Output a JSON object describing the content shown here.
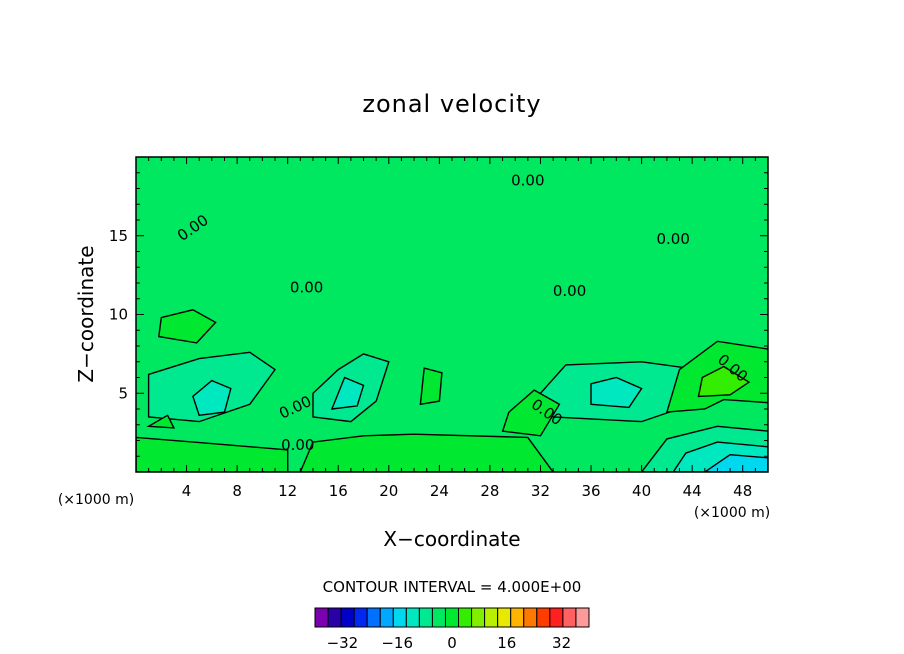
{
  "chart_data": {
    "type": "heatmap",
    "title": "zonal velocity",
    "xlabel": "X−coordinate",
    "ylabel": "Z−coordinate",
    "x_units": "(×1000 m)",
    "y_units": "(×1000 m)",
    "xlim": [
      0,
      50
    ],
    "ylim": [
      0,
      20
    ],
    "x_ticks": [
      4,
      8,
      12,
      16,
      20,
      24,
      28,
      32,
      36,
      40,
      44,
      48
    ],
    "y_ticks": [
      5,
      10,
      15
    ],
    "contour_interval_text": "CONTOUR INTERVAL = 4.000E+00",
    "contour_labels": [
      "0.00",
      "0.00",
      "0.00",
      "0.00",
      "0.00",
      "0.00",
      "0.00",
      "0.00",
      "0.00"
    ],
    "colorbar": {
      "ticks": [
        "−32",
        "−16",
        "0",
        "16",
        "32"
      ],
      "tick_values": [
        -32,
        -16,
        0,
        16,
        32
      ],
      "levels": [
        -40,
        -36,
        -32,
        -28,
        -24,
        -20,
        -16,
        -12,
        -8,
        -4,
        0,
        4,
        8,
        12,
        16,
        20,
        24,
        28,
        32,
        36,
        40
      ],
      "colors": [
        "#7a00b0",
        "#2a00a8",
        "#0000c8",
        "#0028f0",
        "#0070ff",
        "#00a8ff",
        "#00d8f0",
        "#00e8c0",
        "#00e890",
        "#00e860",
        "#00e830",
        "#33ee00",
        "#80f000",
        "#b8f000",
        "#e8e800",
        "#ffb400",
        "#ff7800",
        "#ff3c00",
        "#ff2020",
        "#ff6060",
        "#ff9a9a"
      ]
    },
    "regions": [
      {
        "level": "-4 to 0",
        "x": [
          0,
          50
        ],
        "z": [
          0,
          20
        ],
        "note": "background"
      },
      {
        "level": "-8 to -4",
        "points": [
          [
            1,
            3.5
          ],
          [
            5,
            3.2
          ],
          [
            9,
            4.3
          ],
          [
            11,
            6.5
          ],
          [
            9,
            7.6
          ],
          [
            5,
            7.2
          ],
          [
            1,
            6.2
          ]
        ]
      },
      {
        "level": "-12 to -8",
        "points": [
          [
            5,
            3.6
          ],
          [
            7,
            3.8
          ],
          [
            7.5,
            5.3
          ],
          [
            6,
            5.8
          ],
          [
            4.5,
            4.8
          ]
        ]
      },
      {
        "level": "-8 to -4",
        "points": [
          [
            14,
            3.5
          ],
          [
            17,
            3.2
          ],
          [
            19,
            4.5
          ],
          [
            20,
            7.0
          ],
          [
            18,
            7.5
          ],
          [
            16,
            6.5
          ],
          [
            14,
            5
          ]
        ]
      },
      {
        "level": "-12 to -8",
        "points": [
          [
            15.5,
            4
          ],
          [
            17.5,
            4.2
          ],
          [
            18,
            5.5
          ],
          [
            16.5,
            6
          ]
        ]
      },
      {
        "level": "-8 to -4",
        "points": [
          [
            33,
            3.5
          ],
          [
            40,
            3.2
          ],
          [
            44,
            4.3
          ],
          [
            44.5,
            6.5
          ],
          [
            40,
            7.0
          ],
          [
            34,
            6.8
          ],
          [
            32,
            5
          ]
        ]
      },
      {
        "level": "-12 to -8",
        "points": [
          [
            36,
            4.3
          ],
          [
            39,
            4.1
          ],
          [
            40,
            5.3
          ],
          [
            38,
            6.0
          ],
          [
            36,
            5.6
          ]
        ]
      },
      {
        "level": "-8 to -4",
        "points": [
          [
            40,
            0
          ],
          [
            50,
            0
          ],
          [
            50,
            2.6
          ],
          [
            46,
            2.9
          ],
          [
            42,
            2.1
          ]
        ]
      },
      {
        "level": "-12 to -8",
        "points": [
          [
            42.5,
            0
          ],
          [
            50,
            0
          ],
          [
            50,
            1.6
          ],
          [
            46,
            1.9
          ],
          [
            43.5,
            1.2
          ]
        ]
      },
      {
        "level": "-16 to -12",
        "points": [
          [
            45,
            0
          ],
          [
            50,
            0
          ],
          [
            50,
            0.9
          ],
          [
            47,
            1.1
          ]
        ]
      },
      {
        "level": "0 to 4",
        "points": [
          [
            0,
            0
          ],
          [
            12,
            0
          ],
          [
            12,
            1.4
          ],
          [
            6,
            1.8
          ],
          [
            0,
            2.2
          ]
        ]
      },
      {
        "level": "0 to 4",
        "points": [
          [
            13,
            0
          ],
          [
            33,
            0
          ],
          [
            31,
            2.2
          ],
          [
            22,
            2.4
          ],
          [
            18,
            2.3
          ],
          [
            14,
            1.9
          ]
        ]
      },
      {
        "level": "0 to 4",
        "points": [
          [
            29,
            2.6
          ],
          [
            32,
            2.3
          ],
          [
            33.5,
            4.3
          ],
          [
            31.5,
            5.2
          ],
          [
            29.5,
            3.8
          ]
        ]
      },
      {
        "level": "0 to 4",
        "points": [
          [
            42,
            3.8
          ],
          [
            45,
            4.0
          ],
          [
            46.5,
            4.6
          ],
          [
            50,
            4.4
          ],
          [
            50,
            7.8
          ],
          [
            46,
            8.3
          ],
          [
            43,
            6.5
          ]
        ]
      },
      {
        "level": "4 to 8",
        "points": [
          [
            44.5,
            4.8
          ],
          [
            47,
            4.9
          ],
          [
            48.5,
            5.7
          ],
          [
            46.5,
            6.7
          ],
          [
            44.8,
            6.0
          ]
        ]
      },
      {
        "level": "0 to 4",
        "points": [
          [
            1.8,
            8.6
          ],
          [
            4.8,
            8.2
          ],
          [
            6.3,
            9.5
          ],
          [
            4.5,
            10.3
          ],
          [
            2.0,
            9.8
          ]
        ]
      },
      {
        "level": "0 to 4",
        "points": [
          [
            22.5,
            4.3
          ],
          [
            24.0,
            4.5
          ],
          [
            24.2,
            6.3
          ],
          [
            22.8,
            6.6
          ]
        ]
      },
      {
        "level": "0 to 4",
        "points": [
          [
            1.0,
            2.9
          ],
          [
            3.0,
            2.8
          ],
          [
            2.5,
            3.6
          ]
        ]
      }
    ]
  }
}
